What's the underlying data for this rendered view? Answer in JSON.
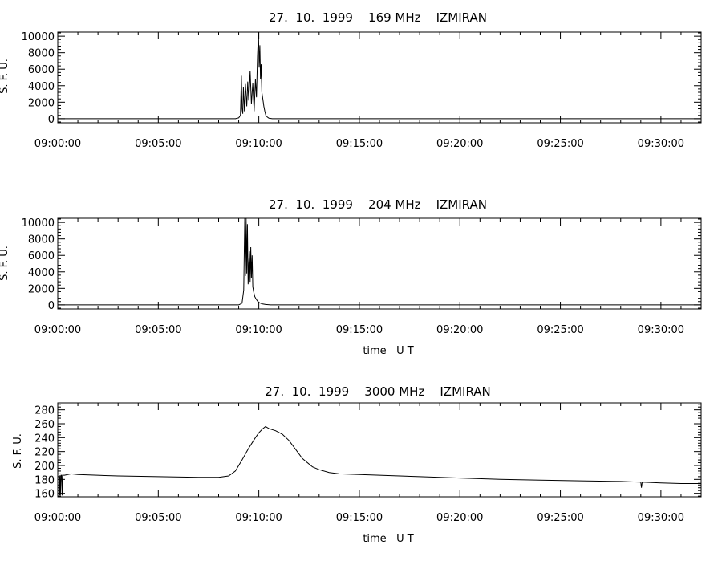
{
  "chart_data": [
    {
      "type": "line",
      "title": "27.  10.  1999    169 MHz    IZMIRAN",
      "ylabel": "S. F. U.",
      "xlabel": "",
      "xlim": [
        "09:00:00",
        "09:32:00"
      ],
      "ylim": [
        -500,
        10500
      ],
      "xtick_labels": [
        "09:00:00",
        "09:05:00",
        "09:10:00",
        "09:15:00",
        "09:20:00",
        "09:25:00",
        "09:30:00"
      ],
      "ytick_labels": [
        "0",
        "2000",
        "4000",
        "6000",
        "8000",
        "10000"
      ],
      "series": [
        {
          "x": [
            "09:08:50",
            "09:09:00",
            "09:09:05",
            "09:09:08",
            "09:09:10",
            "09:09:12",
            "09:09:14",
            "09:09:17",
            "09:09:20",
            "09:09:24",
            "09:09:27",
            "09:09:30",
            "09:09:34",
            "09:09:38",
            "09:09:42",
            "09:09:46",
            "09:09:50",
            "09:09:53",
            "09:09:56",
            "09:09:59",
            "09:10:01",
            "09:10:03",
            "09:10:05",
            "09:10:07",
            "09:10:09",
            "09:10:12",
            "09:10:15",
            "09:10:18",
            "09:10:21",
            "09:10:25",
            "09:10:30",
            "09:10:40",
            "09:11:00"
          ],
          "values": [
            0,
            100,
            400,
            5200,
            1200,
            600,
            3800,
            900,
            4200,
            1500,
            4500,
            2200,
            5800,
            1800,
            4300,
            900,
            4800,
            2600,
            7600,
            10500,
            6200,
            8900,
            4800,
            6600,
            3200,
            2400,
            1500,
            900,
            400,
            200,
            50,
            0,
            0
          ]
        }
      ]
    },
    {
      "type": "line",
      "title": "27.  10.  1999    204 MHz    IZMIRAN",
      "ylabel": "S. F. U.",
      "xlabel": "time   U T",
      "xlim": [
        "09:00:00",
        "09:32:00"
      ],
      "ylim": [
        -500,
        10500
      ],
      "xtick_labels": [
        "09:00:00",
        "09:05:00",
        "09:10:00",
        "09:15:00",
        "09:20:00",
        "09:25:00",
        "09:30:00"
      ],
      "ytick_labels": [
        "0",
        "2000",
        "4000",
        "6000",
        "8000",
        "10000"
      ],
      "series": [
        {
          "x": [
            "09:09:00",
            "09:09:10",
            "09:09:15",
            "09:09:18",
            "09:09:20",
            "09:09:22",
            "09:09:24",
            "09:09:26",
            "09:09:28",
            "09:09:30",
            "09:09:32",
            "09:09:34",
            "09:09:36",
            "09:09:38",
            "09:09:40",
            "09:09:42",
            "09:09:45",
            "09:09:48",
            "09:09:52",
            "09:09:56",
            "09:10:02",
            "09:10:10",
            "09:10:20",
            "09:10:35",
            "09:11:00"
          ],
          "values": [
            0,
            200,
            1800,
            10500,
            3500,
            10500,
            3800,
            9800,
            2500,
            5000,
            6500,
            2800,
            7000,
            3200,
            6000,
            2200,
            1500,
            1000,
            700,
            450,
            250,
            120,
            50,
            0,
            0
          ]
        }
      ]
    },
    {
      "type": "line",
      "title": "27.  10.  1999    3000 MHz    IZMIRAN",
      "ylabel": "S. F. U.",
      "xlabel": "time   U T",
      "xlim": [
        "09:00:00",
        "09:32:00"
      ],
      "ylim": [
        155,
        290
      ],
      "xtick_labels": [
        "09:00:00",
        "09:05:00",
        "09:10:00",
        "09:15:00",
        "09:20:00",
        "09:25:00",
        "09:30:00"
      ],
      "ytick_labels": [
        "160",
        "180",
        "200",
        "220",
        "240",
        "260",
        "280"
      ],
      "series": [
        {
          "x": [
            "09:00:00",
            "09:00:05",
            "09:00:06",
            "09:00:07",
            "09:00:08",
            "09:00:10",
            "09:00:12",
            "09:00:13",
            "09:00:15",
            "09:00:20",
            "09:00:40",
            "09:01:00",
            "09:03:00",
            "09:05:00",
            "09:07:00",
            "09:08:00",
            "09:08:30",
            "09:08:50",
            "09:09:10",
            "09:09:30",
            "09:09:50",
            "09:10:00",
            "09:10:10",
            "09:10:20",
            "09:10:30",
            "09:10:50",
            "09:11:10",
            "09:11:30",
            "09:11:50",
            "09:12:10",
            "09:12:40",
            "09:13:00",
            "09:13:30",
            "09:14:00",
            "09:15:00",
            "09:16:00",
            "09:18:00",
            "09:20:00",
            "09:22:00",
            "09:24:00",
            "09:26:00",
            "09:28:00",
            "09:29:00",
            "09:29:02",
            "09:29:04",
            "09:30:00",
            "09:31:00",
            "09:32:00"
          ],
          "values": [
            184,
            184,
            157,
            186,
            157,
            186,
            186,
            157,
            186,
            186,
            188,
            187,
            185,
            184,
            183,
            183,
            185,
            192,
            208,
            225,
            240,
            247,
            252,
            256,
            253,
            250,
            245,
            236,
            223,
            210,
            198,
            194,
            190,
            188,
            187,
            186,
            184,
            182,
            180,
            179,
            178,
            177,
            176,
            168,
            176,
            175,
            174,
            174
          ]
        }
      ]
    }
  ]
}
